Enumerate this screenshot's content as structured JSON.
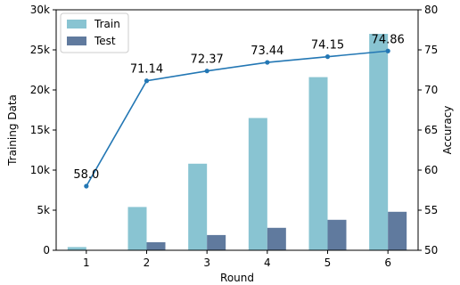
{
  "chart_data": {
    "type": "bar",
    "categories": [
      "1",
      "2",
      "3",
      "4",
      "5",
      "6"
    ],
    "series": [
      {
        "name": "Train",
        "type": "bar",
        "axis": "left",
        "color": "#89c4d2",
        "values": [
          400,
          5400,
          10800,
          16500,
          21600,
          27000
        ]
      },
      {
        "name": "Test",
        "type": "bar",
        "axis": "left",
        "color": "#607a9e",
        "values": [
          0,
          1000,
          1900,
          2800,
          3800,
          4800
        ]
      },
      {
        "type": "line",
        "axis": "right",
        "color": "#2377b4",
        "values": [
          58.0,
          71.14,
          72.37,
          73.44,
          74.15,
          74.86
        ]
      }
    ],
    "data_labels": [
      "58.0",
      "71.14",
      "72.37",
      "73.44",
      "74.15",
      "74.86"
    ],
    "xlabel": "Round",
    "ylabel_left": "Training Data",
    "ylabel_right": "Accuracy",
    "ylim_left": [
      0,
      30000
    ],
    "ylim_right": [
      50,
      80
    ],
    "yticks_left": [
      0,
      5000,
      10000,
      15000,
      20000,
      25000,
      30000
    ],
    "yticks_left_labels": [
      "0",
      "5k",
      "10k",
      "15k",
      "20k",
      "25k",
      "30k"
    ],
    "yticks_right": [
      50,
      55,
      60,
      65,
      70,
      75,
      80
    ],
    "yticks_right_labels": [
      "50",
      "55",
      "60",
      "65",
      "70",
      "75",
      "80"
    ],
    "grid": false,
    "legend": {
      "position": "top-left",
      "entries": [
        "Train",
        "Test"
      ]
    }
  }
}
